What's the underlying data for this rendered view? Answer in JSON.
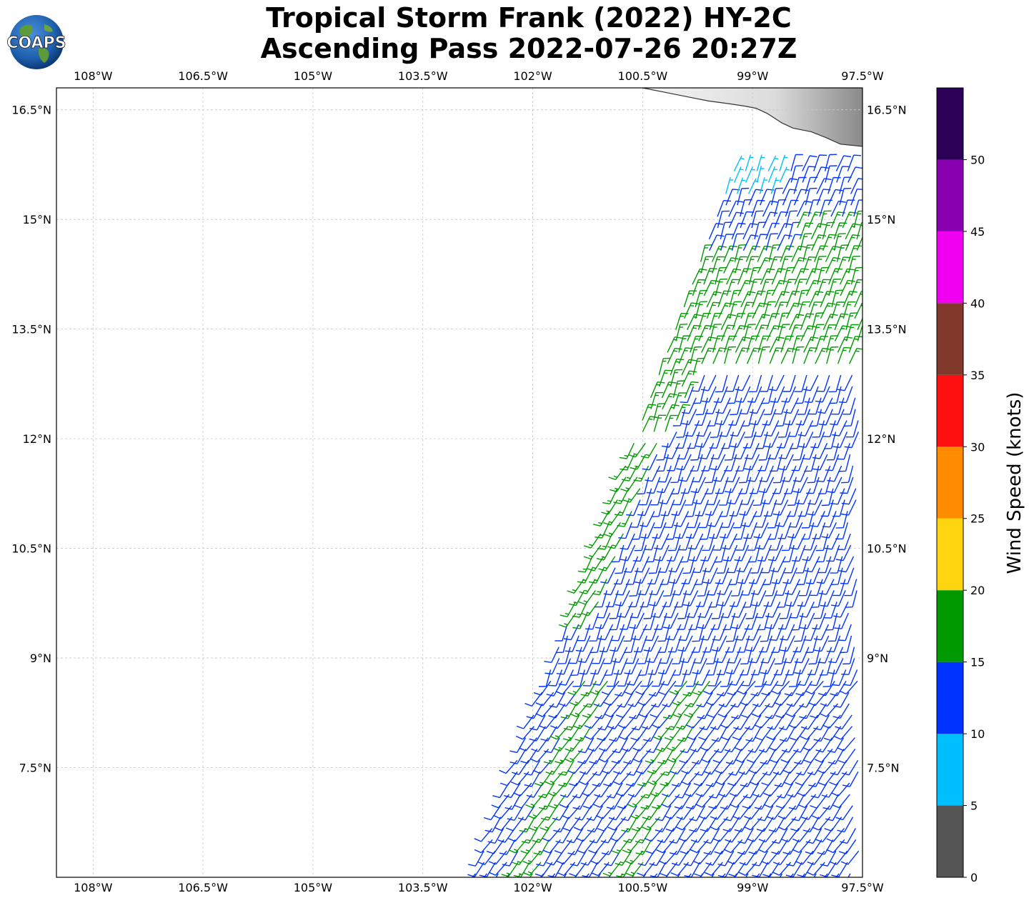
{
  "title": {
    "line1": "Tropical Storm Frank (2022) HY-2C",
    "line2": "Ascending Pass 2022-07-26 20:27Z"
  },
  "logo": {
    "text": "COAPS",
    "icon": "globe-logo-icon"
  },
  "map": {
    "lon_range": [
      -108.5,
      -97.5
    ],
    "lat_range": [
      6.0,
      16.8
    ],
    "lon_ticks": [
      {
        "v": -108.0,
        "label": "108°W"
      },
      {
        "v": -106.5,
        "label": "106.5°W"
      },
      {
        "v": -105.0,
        "label": "105°W"
      },
      {
        "v": -103.5,
        "label": "103.5°W"
      },
      {
        "v": -102.0,
        "label": "102°W"
      },
      {
        "v": -100.5,
        "label": "100.5°W"
      },
      {
        "v": -99.0,
        "label": "99°W"
      },
      {
        "v": -97.5,
        "label": "97.5°W"
      }
    ],
    "lat_ticks": [
      {
        "v": 16.5,
        "label": "16.5°N"
      },
      {
        "v": 15.0,
        "label": "15°N"
      },
      {
        "v": 13.5,
        "label": "13.5°N"
      },
      {
        "v": 12.0,
        "label": "12°N"
      },
      {
        "v": 10.5,
        "label": "10.5°N"
      },
      {
        "v": 9.0,
        "label": "9°N"
      },
      {
        "v": 7.5,
        "label": "7.5°N"
      }
    ],
    "gridlines": true,
    "coastline": [
      [
        -100.5,
        16.8
      ],
      [
        -100.1,
        16.72
      ],
      [
        -99.8,
        16.66
      ],
      [
        -99.6,
        16.62
      ],
      [
        -99.3,
        16.58
      ],
      [
        -99.1,
        16.55
      ],
      [
        -98.95,
        16.52
      ],
      [
        -98.8,
        16.45
      ],
      [
        -98.6,
        16.32
      ],
      [
        -98.45,
        16.25
      ],
      [
        -98.2,
        16.2
      ],
      [
        -98.0,
        16.12
      ],
      [
        -97.8,
        16.03
      ],
      [
        -97.5,
        16.0
      ]
    ]
  },
  "wind_field": {
    "description_units": "knots",
    "swath": {
      "bottom_lat": 6.0,
      "bottom_left_lon": -102.8,
      "top_lat": 15.8,
      "top_left_lon": -99.2
    },
    "regimes": [
      {
        "region": "north (lat > 13.5), west part",
        "speed_kt": 13,
        "dir_from_deg": 20
      },
      {
        "region": "band 13 to 14.5 N",
        "speed_kt": 17,
        "dir_from_deg": 20
      },
      {
        "region": "central",
        "speed_kt": 12,
        "dir_from_deg": 200
      },
      {
        "region": "western edge 9.5 to 12 N",
        "speed_kt": 17,
        "dir_from_deg": 210
      },
      {
        "region": "south",
        "speed_kt": 13,
        "dir_from_deg": 215
      },
      {
        "region": "south-central band",
        "speed_kt": 17,
        "dir_from_deg": 215
      },
      {
        "region": "north-east tip",
        "speed_kt": 8,
        "dir_from_deg": 20
      }
    ]
  },
  "colorbar": {
    "label": "Wind Speed (knots)",
    "bins": [
      {
        "min": 0,
        "max": 5,
        "color": "#555555"
      },
      {
        "min": 5,
        "max": 10,
        "color": "#00bfff"
      },
      {
        "min": 10,
        "max": 15,
        "color": "#0033ff"
      },
      {
        "min": 15,
        "max": 20,
        "color": "#009900"
      },
      {
        "min": 20,
        "max": 25,
        "color": "#ffd510"
      },
      {
        "min": 25,
        "max": 30,
        "color": "#ff8c00"
      },
      {
        "min": 30,
        "max": 35,
        "color": "#ff1010"
      },
      {
        "min": 35,
        "max": 40,
        "color": "#80392a"
      },
      {
        "min": 40,
        "max": 45,
        "color": "#f000f0"
      },
      {
        "min": 45,
        "max": 50,
        "color": "#8800b0"
      },
      {
        "min": 50,
        "max": 55,
        "color": "#2d0058"
      }
    ],
    "ticks": [
      "0",
      "5",
      "10",
      "15",
      "20",
      "25",
      "30",
      "35",
      "40",
      "45",
      "50"
    ]
  }
}
